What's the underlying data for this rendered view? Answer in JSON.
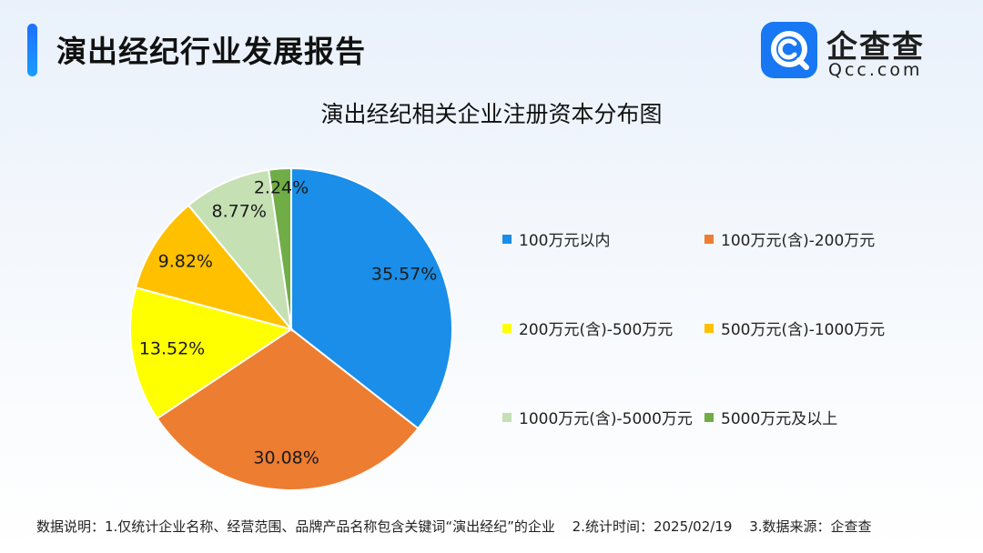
{
  "header": {
    "report_title": "演出经纪行业发展报告",
    "logo_name": "企查查",
    "logo_domain": "Qcc.com",
    "accent_color": "#1a7cf5"
  },
  "chart_data": {
    "type": "pie",
    "title": "演出经纪相关企业注册资本分布图",
    "unit": "%",
    "legend_position": "right",
    "slices": [
      {
        "label": "100万元以内",
        "value": 35.57,
        "display": "35.57%",
        "color": "#1a8ee8"
      },
      {
        "label": "100万元(含)-200万元",
        "value": 30.08,
        "display": "30.08%",
        "color": "#ed7d31"
      },
      {
        "label": "200万元(含)-500万元",
        "value": 13.52,
        "display": "13.52%",
        "color": "#ffff00"
      },
      {
        "label": "500万元(含)-1000万元",
        "value": 9.82,
        "display": "9.82%",
        "color": "#ffc000"
      },
      {
        "label": "1000万元(含)-5000万元",
        "value": 8.77,
        "display": "8.77%",
        "color": "#c5e0b3"
      },
      {
        "label": "5000万元及以上",
        "value": 2.24,
        "display": "2.24%",
        "color": "#70ad47"
      }
    ]
  },
  "footnote": {
    "note1": "数据说明：1.仅统计企业名称、经营范围、品牌产品名称包含关键词“演出经纪”的企业",
    "note2": "2.统计时间：2025/02/19",
    "note3": "3.数据来源：企查查"
  }
}
